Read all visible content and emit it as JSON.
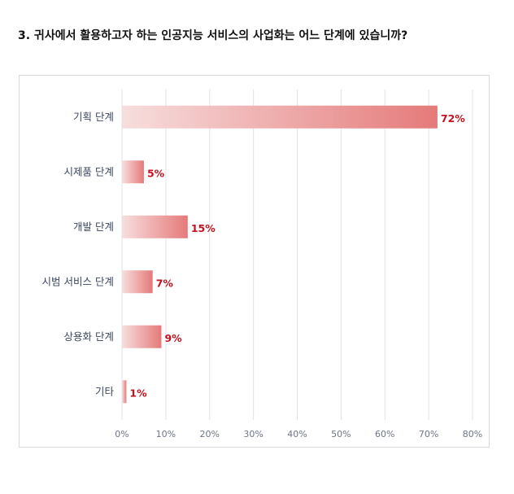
{
  "question": "3. 귀사에서 활용하고자 하는 인공지능 서비스의 사업화는 어느 단계에 있습니까?",
  "colors": {
    "bar_start": "#f7dede",
    "bar_end": "#e57a7a",
    "value_label": "#c1121f",
    "grid": "#e3e3e3"
  },
  "chart_data": {
    "type": "bar",
    "orientation": "horizontal",
    "categories": [
      "기획 단계",
      "시제품 단계",
      "개발 단계",
      "시범 서비스 단계",
      "상용화 단계",
      "기타"
    ],
    "values": [
      72,
      5,
      15,
      7,
      9,
      1
    ],
    "value_labels": [
      "72%",
      "5%",
      "15%",
      "7%",
      "9%",
      "1%"
    ],
    "xlim": [
      0,
      80
    ],
    "x_ticks": [
      "0%",
      "10%",
      "20%",
      "30%",
      "40%",
      "50%",
      "60%",
      "70%",
      "80%"
    ],
    "grid": true,
    "legend": "none"
  }
}
